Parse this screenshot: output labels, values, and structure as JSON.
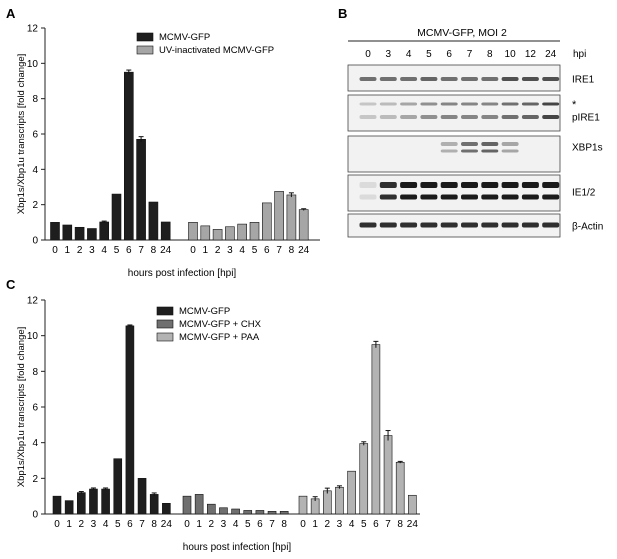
{
  "panels": {
    "a": {
      "label": "A"
    },
    "b": {
      "label": "B"
    },
    "c": {
      "label": "C"
    }
  },
  "chart_data": [
    {
      "type": "bar",
      "panel": "A",
      "ylabel": "Xbp1s/Xbp1u transcripts [fold change]",
      "xlabel": "hours post infection [hpi]",
      "ylim": [
        0,
        12
      ],
      "yticks": [
        0,
        2,
        4,
        6,
        8,
        10,
        12
      ],
      "legend_position": "top-center",
      "series": [
        {
          "name": "MCMV-GFP",
          "color": "#1e1e1e",
          "categories": [
            "0",
            "1",
            "2",
            "3",
            "4",
            "5",
            "6",
            "7",
            "8",
            "24"
          ],
          "values": [
            1.0,
            0.85,
            0.72,
            0.65,
            1.02,
            2.6,
            9.5,
            5.7,
            2.15,
            1.02
          ],
          "errors": [
            0,
            0,
            0,
            0,
            0.05,
            0,
            0.12,
            0.15,
            0,
            0
          ]
        },
        {
          "name": "UV-inactivated MCMV-GFP",
          "color": "#a6a6a6",
          "categories": [
            "0",
            "1",
            "2",
            "3",
            "4",
            "5",
            "6",
            "7",
            "8",
            "24"
          ],
          "values": [
            1.0,
            0.8,
            0.6,
            0.75,
            0.9,
            1.0,
            2.1,
            2.75,
            2.55,
            1.72
          ],
          "errors": [
            0,
            0,
            0,
            0,
            0,
            0,
            0,
            0,
            0.12,
            0.05
          ]
        }
      ]
    },
    {
      "type": "bar",
      "panel": "C",
      "ylabel": "Xbp1s/Xbp1u transcripts [fold change]",
      "xlabel": "hours post infection [hpi]",
      "ylim": [
        0,
        12
      ],
      "yticks": [
        0,
        2,
        4,
        6,
        8,
        10,
        12
      ],
      "legend_position": "top-center",
      "series": [
        {
          "name": "MCMV-GFP",
          "color": "#1e1e1e",
          "categories": [
            "0",
            "1",
            "2",
            "3",
            "4",
            "5",
            "6",
            "7",
            "8",
            "24"
          ],
          "values": [
            1.0,
            0.75,
            1.2,
            1.4,
            1.4,
            3.1,
            10.55,
            2.0,
            1.1,
            0.6
          ],
          "errors": [
            0,
            0,
            0.06,
            0.06,
            0.06,
            0,
            0.05,
            0,
            0.08,
            0
          ]
        },
        {
          "name": "MCMV-GFP + CHX",
          "color": "#6f6f6f",
          "categories": [
            "0",
            "1",
            "2",
            "3",
            "4",
            "5",
            "6",
            "7",
            "8"
          ],
          "values": [
            1.0,
            1.1,
            0.55,
            0.35,
            0.28,
            0.2,
            0.2,
            0.15,
            0.15
          ],
          "errors": [
            0,
            0,
            0,
            0,
            0,
            0,
            0,
            0,
            0
          ]
        },
        {
          "name": "MCMV-GFP + PAA",
          "color": "#b3b3b3",
          "categories": [
            "0",
            "1",
            "2",
            "3",
            "4",
            "5",
            "6",
            "7",
            "8",
            "24"
          ],
          "values": [
            1.0,
            0.85,
            1.3,
            1.5,
            2.4,
            3.95,
            9.5,
            4.4,
            2.9,
            1.05
          ],
          "errors": [
            0,
            0.12,
            0.15,
            0.08,
            0,
            0.1,
            0.18,
            0.28,
            0.05,
            0
          ]
        }
      ]
    }
  ],
  "western_blot": {
    "title": "MCMV-GFP, MOI 2",
    "unit": "hpi",
    "lanes": [
      "0",
      "3",
      "4",
      "5",
      "6",
      "7",
      "8",
      "10",
      "12",
      "24"
    ],
    "rows": [
      {
        "label": "IRE1",
        "intensity": [
          0.55,
          0.55,
          0.55,
          0.6,
          0.55,
          0.55,
          0.55,
          0.7,
          0.7,
          0.7
        ]
      },
      {
        "label": "pIRE1",
        "asterisk": "*",
        "intensity": [
          0.15,
          0.2,
          0.3,
          0.4,
          0.45,
          0.45,
          0.45,
          0.55,
          0.6,
          0.75
        ]
      },
      {
        "label": "XBP1s",
        "intensity": [
          0,
          0,
          0,
          0,
          0.25,
          0.55,
          0.6,
          0.3,
          0,
          0
        ]
      },
      {
        "label": "IE1/2",
        "intensity": [
          0.05,
          0.85,
          0.95,
          0.95,
          0.95,
          0.95,
          0.95,
          0.95,
          0.95,
          0.95
        ]
      },
      {
        "label": "β-Actin",
        "intensity": [
          0.85,
          0.85,
          0.85,
          0.85,
          0.85,
          0.85,
          0.85,
          0.85,
          0.85,
          0.85
        ]
      }
    ]
  }
}
